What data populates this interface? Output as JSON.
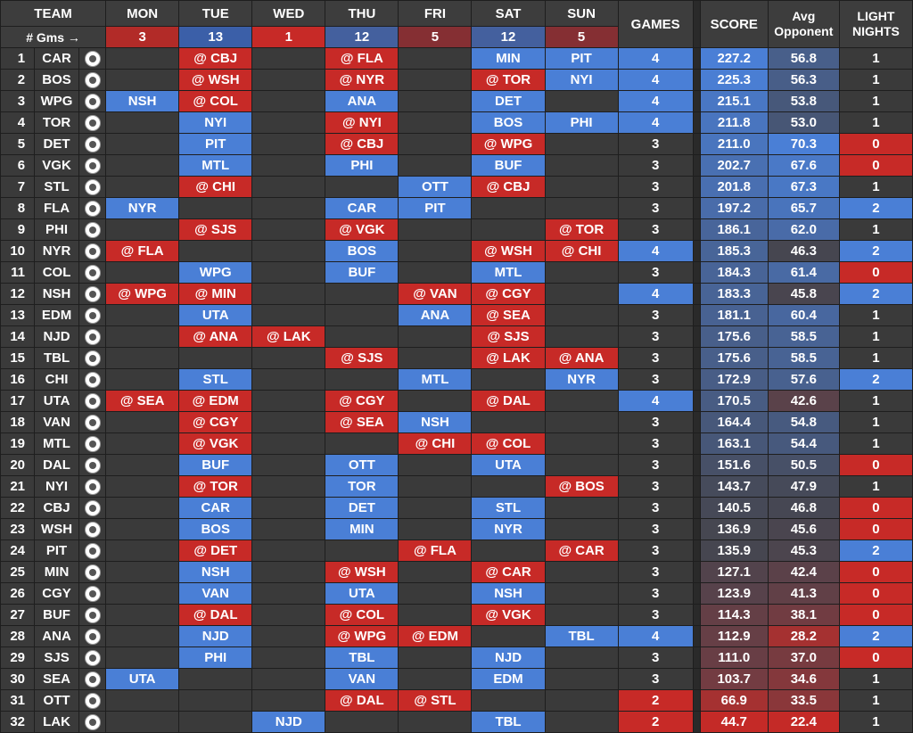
{
  "headers": {
    "team": "TEAM",
    "days": [
      "MON",
      "TUE",
      "WED",
      "THU",
      "FRI",
      "SAT",
      "SUN"
    ],
    "games": "GAMES",
    "score": "SCORE",
    "avg_opp": "Avg\nOpponent",
    "light": "LIGHT\nNIGHTS",
    "gms_label": "# Gms →",
    "gms_counts": [
      3,
      13,
      1,
      12,
      5,
      12,
      5
    ]
  },
  "colors": {
    "home": "#4a7fd6",
    "away": "#c72a27",
    "empty": "#3a3a3a",
    "row_bg": "#3a3a3a"
  },
  "rows": [
    {
      "rank": 1,
      "team": "CAR",
      "logo": "hurricanes-logo-icon",
      "days": [
        "",
        "@ CBJ",
        "",
        "@ FLA",
        "",
        "MIN",
        "PIT"
      ],
      "games": 4,
      "score": "227.2",
      "avg": "56.8",
      "light": 1
    },
    {
      "rank": 2,
      "team": "BOS",
      "logo": "bruins-logo-icon",
      "days": [
        "",
        "@ WSH",
        "",
        "@ NYR",
        "",
        "@ TOR",
        "NYI"
      ],
      "games": 4,
      "score": "225.3",
      "avg": "56.3",
      "light": 1
    },
    {
      "rank": 3,
      "team": "WPG",
      "logo": "jets-logo-icon",
      "days": [
        "NSH",
        "@ COL",
        "",
        "ANA",
        "",
        "DET",
        ""
      ],
      "games": 4,
      "score": "215.1",
      "avg": "53.8",
      "light": 1
    },
    {
      "rank": 4,
      "team": "TOR",
      "logo": "maple-leafs-logo-icon",
      "days": [
        "",
        "NYI",
        "",
        "@ NYI",
        "",
        "BOS",
        "PHI"
      ],
      "games": 4,
      "score": "211.8",
      "avg": "53.0",
      "light": 1
    },
    {
      "rank": 5,
      "team": "DET",
      "logo": "red-wings-logo-icon",
      "days": [
        "",
        "PIT",
        "",
        "@ CBJ",
        "",
        "@ WPG",
        ""
      ],
      "games": 3,
      "score": "211.0",
      "avg": "70.3",
      "light": 0
    },
    {
      "rank": 6,
      "team": "VGK",
      "logo": "golden-knights-logo-icon",
      "days": [
        "",
        "MTL",
        "",
        "PHI",
        "",
        "BUF",
        ""
      ],
      "games": 3,
      "score": "202.7",
      "avg": "67.6",
      "light": 0
    },
    {
      "rank": 7,
      "team": "STL",
      "logo": "blues-logo-icon",
      "days": [
        "",
        "@ CHI",
        "",
        "",
        "OTT",
        "@ CBJ",
        ""
      ],
      "games": 3,
      "score": "201.8",
      "avg": "67.3",
      "light": 1
    },
    {
      "rank": 8,
      "team": "FLA",
      "logo": "panthers-logo-icon",
      "days": [
        "NYR",
        "",
        "",
        "CAR",
        "PIT",
        "",
        ""
      ],
      "games": 3,
      "score": "197.2",
      "avg": "65.7",
      "light": 2
    },
    {
      "rank": 9,
      "team": "PHI",
      "logo": "flyers-logo-icon",
      "days": [
        "",
        "@ SJS",
        "",
        "@ VGK",
        "",
        "",
        "@ TOR"
      ],
      "games": 3,
      "score": "186.1",
      "avg": "62.0",
      "light": 1
    },
    {
      "rank": 10,
      "team": "NYR",
      "logo": "rangers-logo-icon",
      "days": [
        "@ FLA",
        "",
        "",
        "BOS",
        "",
        "@ WSH",
        "@ CHI"
      ],
      "games": 4,
      "score": "185.3",
      "avg": "46.3",
      "light": 2
    },
    {
      "rank": 11,
      "team": "COL",
      "logo": "avalanche-logo-icon",
      "days": [
        "",
        "WPG",
        "",
        "BUF",
        "",
        "MTL",
        ""
      ],
      "games": 3,
      "score": "184.3",
      "avg": "61.4",
      "light": 0
    },
    {
      "rank": 12,
      "team": "NSH",
      "logo": "predators-logo-icon",
      "days": [
        "@ WPG",
        "@ MIN",
        "",
        "",
        "@ VAN",
        "@ CGY",
        ""
      ],
      "games": 4,
      "score": "183.3",
      "avg": "45.8",
      "light": 2
    },
    {
      "rank": 13,
      "team": "EDM",
      "logo": "oilers-logo-icon",
      "days": [
        "",
        "UTA",
        "",
        "",
        "ANA",
        "@ SEA",
        ""
      ],
      "games": 3,
      "score": "181.1",
      "avg": "60.4",
      "light": 1
    },
    {
      "rank": 14,
      "team": "NJD",
      "logo": "devils-logo-icon",
      "days": [
        "",
        "@ ANA",
        "@ LAK",
        "",
        "",
        "@ SJS",
        ""
      ],
      "games": 3,
      "score": "175.6",
      "avg": "58.5",
      "light": 1
    },
    {
      "rank": 15,
      "team": "TBL",
      "logo": "lightning-logo-icon",
      "days": [
        "",
        "",
        "",
        "@ SJS",
        "",
        "@ LAK",
        "@ ANA"
      ],
      "games": 3,
      "score": "175.6",
      "avg": "58.5",
      "light": 1
    },
    {
      "rank": 16,
      "team": "CHI",
      "logo": "blackhawks-logo-icon",
      "days": [
        "",
        "STL",
        "",
        "",
        "MTL",
        "",
        "NYR"
      ],
      "games": 3,
      "score": "172.9",
      "avg": "57.6",
      "light": 2
    },
    {
      "rank": 17,
      "team": "UTA",
      "logo": "utah-logo-icon",
      "days": [
        "@ SEA",
        "@ EDM",
        "",
        "@ CGY",
        "",
        "@ DAL",
        ""
      ],
      "games": 4,
      "score": "170.5",
      "avg": "42.6",
      "light": 1
    },
    {
      "rank": 18,
      "team": "VAN",
      "logo": "canucks-logo-icon",
      "days": [
        "",
        "@ CGY",
        "",
        "@ SEA",
        "NSH",
        "",
        ""
      ],
      "games": 3,
      "score": "164.4",
      "avg": "54.8",
      "light": 1
    },
    {
      "rank": 19,
      "team": "MTL",
      "logo": "canadiens-logo-icon",
      "days": [
        "",
        "@ VGK",
        "",
        "",
        "@ CHI",
        "@ COL",
        ""
      ],
      "games": 3,
      "score": "163.1",
      "avg": "54.4",
      "light": 1
    },
    {
      "rank": 20,
      "team": "DAL",
      "logo": "stars-logo-icon",
      "days": [
        "",
        "BUF",
        "",
        "OTT",
        "",
        "UTA",
        ""
      ],
      "games": 3,
      "score": "151.6",
      "avg": "50.5",
      "light": 0
    },
    {
      "rank": 21,
      "team": "NYI",
      "logo": "islanders-logo-icon",
      "days": [
        "",
        "@ TOR",
        "",
        "TOR",
        "",
        "",
        "@ BOS"
      ],
      "games": 3,
      "score": "143.7",
      "avg": "47.9",
      "light": 1
    },
    {
      "rank": 22,
      "team": "CBJ",
      "logo": "blue-jackets-logo-icon",
      "days": [
        "",
        "CAR",
        "",
        "DET",
        "",
        "STL",
        ""
      ],
      "games": 3,
      "score": "140.5",
      "avg": "46.8",
      "light": 0
    },
    {
      "rank": 23,
      "team": "WSH",
      "logo": "capitals-logo-icon",
      "days": [
        "",
        "BOS",
        "",
        "MIN",
        "",
        "NYR",
        ""
      ],
      "games": 3,
      "score": "136.9",
      "avg": "45.6",
      "light": 0
    },
    {
      "rank": 24,
      "team": "PIT",
      "logo": "penguins-logo-icon",
      "days": [
        "",
        "@ DET",
        "",
        "",
        "@ FLA",
        "",
        "@ CAR"
      ],
      "games": 3,
      "score": "135.9",
      "avg": "45.3",
      "light": 2
    },
    {
      "rank": 25,
      "team": "MIN",
      "logo": "wild-logo-icon",
      "days": [
        "",
        "NSH",
        "",
        "@ WSH",
        "",
        "@ CAR",
        ""
      ],
      "games": 3,
      "score": "127.1",
      "avg": "42.4",
      "light": 0
    },
    {
      "rank": 26,
      "team": "CGY",
      "logo": "flames-logo-icon",
      "days": [
        "",
        "VAN",
        "",
        "UTA",
        "",
        "NSH",
        ""
      ],
      "games": 3,
      "score": "123.9",
      "avg": "41.3",
      "light": 0
    },
    {
      "rank": 27,
      "team": "BUF",
      "logo": "sabres-logo-icon",
      "days": [
        "",
        "@ DAL",
        "",
        "@ COL",
        "",
        "@ VGK",
        ""
      ],
      "games": 3,
      "score": "114.3",
      "avg": "38.1",
      "light": 0
    },
    {
      "rank": 28,
      "team": "ANA",
      "logo": "ducks-logo-icon",
      "days": [
        "",
        "NJD",
        "",
        "@ WPG",
        "@ EDM",
        "",
        "TBL"
      ],
      "games": 4,
      "score": "112.9",
      "avg": "28.2",
      "light": 2
    },
    {
      "rank": 29,
      "team": "SJS",
      "logo": "sharks-logo-icon",
      "days": [
        "",
        "PHI",
        "",
        "TBL",
        "",
        "NJD",
        ""
      ],
      "games": 3,
      "score": "111.0",
      "avg": "37.0",
      "light": 0
    },
    {
      "rank": 30,
      "team": "SEA",
      "logo": "kraken-logo-icon",
      "days": [
        "UTA",
        "",
        "",
        "VAN",
        "",
        "EDM",
        ""
      ],
      "games": 3,
      "score": "103.7",
      "avg": "34.6",
      "light": 1
    },
    {
      "rank": 31,
      "team": "OTT",
      "logo": "senators-logo-icon",
      "days": [
        "",
        "",
        "",
        "@ DAL",
        "@ STL",
        "",
        ""
      ],
      "games": 2,
      "score": "66.9",
      "avg": "33.5",
      "light": 1
    },
    {
      "rank": 32,
      "team": "LAK",
      "logo": "kings-logo-icon",
      "days": [
        "",
        "",
        "NJD",
        "",
        "",
        "TBL",
        ""
      ],
      "games": 2,
      "score": "44.7",
      "avg": "22.4",
      "light": 1
    }
  ]
}
